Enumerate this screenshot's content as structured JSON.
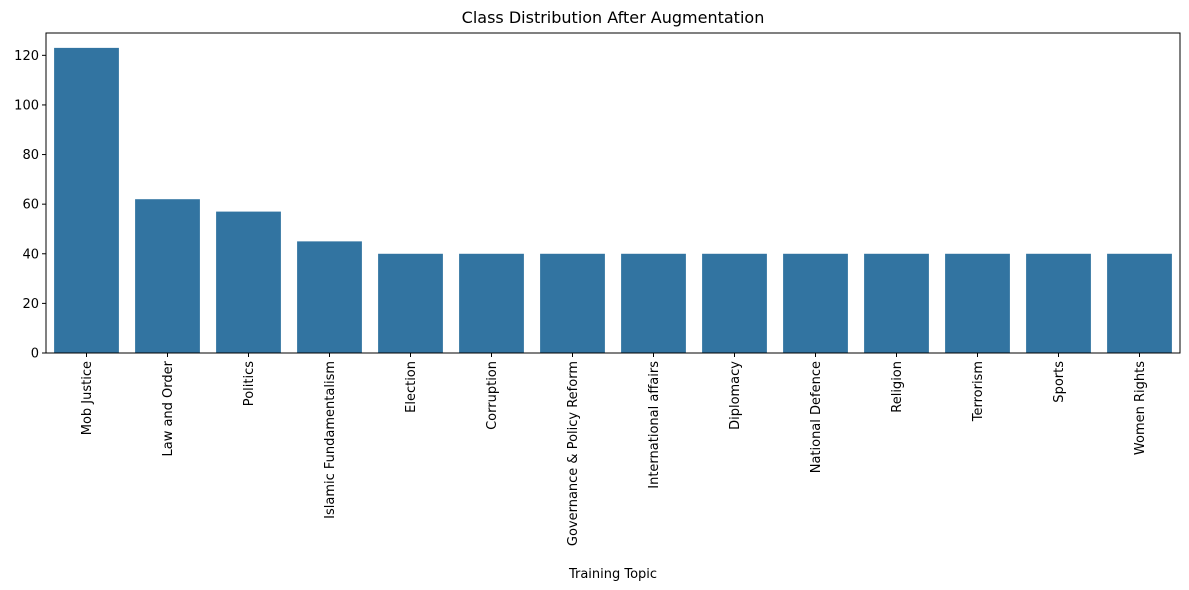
{
  "chart_data": {
    "type": "bar",
    "title": "Class Distribution After Augmentation",
    "xlabel": "Training Topic",
    "ylabel": "",
    "categories": [
      "Mob Justice",
      "Law and Order",
      "Politics",
      "Islamic Fundamentalism",
      "Election",
      "Corruption",
      "Governance & Policy Reform",
      "International affairs",
      "Diplomacy",
      "National Defence",
      "Religion",
      "Terrorism",
      "Sports",
      "Women Rights"
    ],
    "values": [
      123,
      62,
      57,
      45,
      40,
      40,
      40,
      40,
      40,
      40,
      40,
      40,
      40,
      40
    ],
    "ylim": [
      0,
      129
    ],
    "yticks": [
      "0",
      "20",
      "40",
      "60",
      "80",
      "100",
      "120"
    ],
    "grid": false,
    "bar_color": "#3274a1"
  }
}
